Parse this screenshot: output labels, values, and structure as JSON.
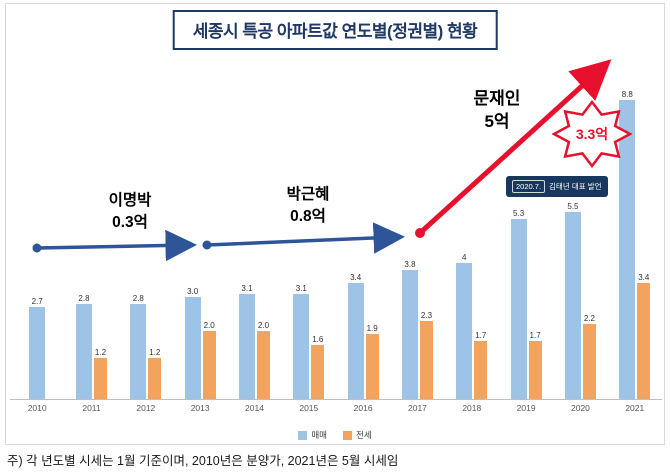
{
  "title": "세종시 특공 아파트값 연도별(정권별) 현황",
  "footnote": "주) 각 년도별 시세는 1월 기준이며, 2010년은 분양가, 2021년은 5월 시세임",
  "colors": {
    "sale": "#9dc3e6",
    "jeonse": "#f2a45f",
    "title_navy": "#1f3864",
    "arrow_blue": "#2e5597",
    "arrow_red": "#e8112d",
    "badge_navy": "#17375e",
    "axis_gray": "#bfbfbf",
    "label_gray": "#595959"
  },
  "legend": [
    {
      "label": "매매",
      "color": "#9dc3e6"
    },
    {
      "label": "전세",
      "color": "#f2a45f"
    }
  ],
  "chart_data": {
    "type": "bar",
    "title": "세종시 특공 아파트값 연도별(정권별) 현황",
    "categories": [
      "2010",
      "2011",
      "2012",
      "2013",
      "2014",
      "2015",
      "2016",
      "2017",
      "2018",
      "2019",
      "2020",
      "2021"
    ],
    "series": [
      {
        "name": "매매",
        "key": "sale",
        "color": "#9dc3e6",
        "values": [
          2.7,
          2.8,
          2.8,
          3.0,
          3.1,
          3.1,
          3.4,
          3.8,
          4,
          5.3,
          5.5,
          8.8
        ],
        "labels": [
          "2.7",
          "2.8",
          "2.8",
          "3.0",
          "3.1",
          "3.1",
          "3.4",
          "3.8",
          "4",
          "5.3",
          "5.5",
          "8.8"
        ]
      },
      {
        "name": "전세",
        "key": "jeonse",
        "color": "#f2a45f",
        "values": [
          null,
          1.2,
          1.2,
          2.0,
          2.0,
          1.6,
          1.9,
          2.3,
          1.7,
          1.7,
          2.2,
          3.4
        ],
        "labels": [
          null,
          "1.2",
          "1.2",
          "2.0",
          "2.0",
          "1.6",
          "1.9",
          "2.3",
          "1.7",
          "1.7",
          "2.2",
          "3.4"
        ]
      }
    ],
    "ylim": [
      0,
      9.5
    ],
    "grid": false,
    "legend_position": "bottom",
    "annotations": {
      "lee": {
        "name": "이명박",
        "delta": "0.3억",
        "span": [
          "2010",
          "2013"
        ]
      },
      "park": {
        "name": "박근혜",
        "delta": "0.8억",
        "span": [
          "2013",
          "2017"
        ]
      },
      "moon": {
        "name": "문재인",
        "delta": "5억",
        "span": [
          "2017",
          "2021"
        ]
      },
      "burst_label": "3.3억",
      "badge": {
        "date": "2020.7.",
        "text": "김태년 대표 발언"
      }
    }
  }
}
